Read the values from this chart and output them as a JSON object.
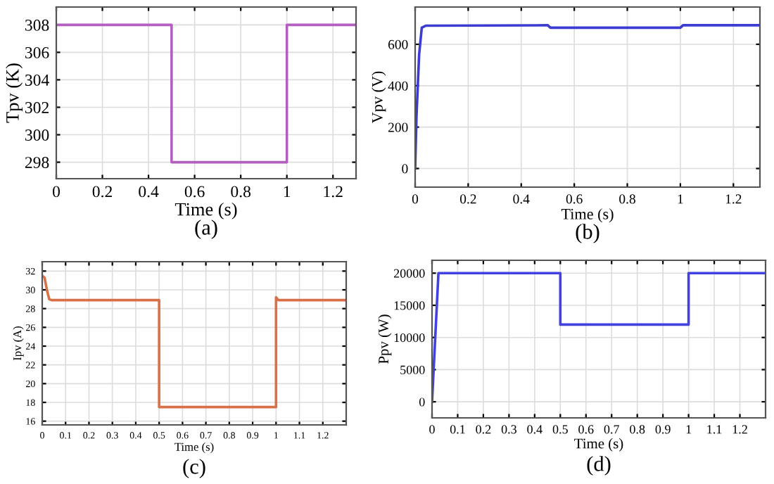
{
  "chart_data": [
    {
      "type": "line",
      "xlabel": "Time (s)",
      "ylabel": "Tpv (K)",
      "annotations": [
        "(a)"
      ],
      "grid": true,
      "xlim": [
        0,
        1.3
      ],
      "ylim": [
        296.8,
        309.3
      ],
      "xticks": [
        0,
        0.2,
        0.4,
        0.6,
        0.8,
        1,
        1.2
      ],
      "yticks": [
        298,
        300,
        302,
        304,
        306,
        308
      ],
      "series": [
        {
          "color": "#b25fc0",
          "x": [
            0,
            0.5,
            0.5,
            1,
            1,
            1.3
          ],
          "values": [
            308,
            308,
            298,
            298,
            308,
            308
          ]
        }
      ]
    },
    {
      "type": "line",
      "xlabel": "Time (s)",
      "ylabel": "Vpv (V)",
      "annotations": [
        "(b)"
      ],
      "grid": true,
      "xlim": [
        0,
        1.3
      ],
      "ylim": [
        -90,
        780
      ],
      "xticks": [
        0,
        0.2,
        0.4,
        0.6,
        0.8,
        1,
        1.2
      ],
      "yticks": [
        0,
        200,
        400,
        600
      ],
      "series": [
        {
          "color": "#3c3cd2",
          "x": [
            0,
            0.005,
            0.015,
            0.025,
            0.04,
            0.5,
            0.51,
            1,
            1.01,
            1.3
          ],
          "values": [
            0,
            250,
            550,
            680,
            690,
            692,
            680,
            680,
            692,
            692
          ]
        }
      ]
    },
    {
      "type": "line",
      "xlabel": "Time (s)",
      "ylabel": "Ipv (A)",
      "annotations": [
        "(c)"
      ],
      "grid": true,
      "xlim": [
        0,
        1.3
      ],
      "ylim": [
        15.6,
        33
      ],
      "xticks": [
        0,
        0.1,
        0.2,
        0.3,
        0.4,
        0.5,
        0.6,
        0.7,
        0.8,
        0.9,
        1,
        1.1,
        1.2
      ],
      "yticks": [
        16,
        18,
        20,
        22,
        24,
        26,
        28,
        30,
        32
      ],
      "series": [
        {
          "color": "#d8714a",
          "x": [
            0,
            0.01,
            0.02,
            0.03,
            0.04,
            0.5,
            0.5,
            1,
            1,
            1.01,
            1.3
          ],
          "values": [
            31.5,
            31.3,
            30,
            29,
            28.9,
            28.9,
            17.5,
            17.5,
            29.2,
            28.9,
            28.9
          ]
        }
      ]
    },
    {
      "type": "line",
      "xlabel": "Time (s)",
      "ylabel": "Ppv (W)",
      "annotations": [
        "(d)"
      ],
      "grid": true,
      "xlim": [
        0,
        1.3
      ],
      "ylim": [
        -2500,
        22000
      ],
      "xticks": [
        0,
        0.1,
        0.2,
        0.3,
        0.4,
        0.5,
        0.6,
        0.7,
        0.8,
        0.9,
        1,
        1.1,
        1.2
      ],
      "yticks": [
        0,
        5000,
        10000,
        15000,
        20000
      ],
      "series": [
        {
          "color": "#4242e0",
          "x": [
            0,
            0.025,
            0.5,
            0.5,
            1,
            1,
            1.3
          ],
          "values": [
            0,
            20000,
            20000,
            12000,
            12000,
            20000,
            20000
          ]
        }
      ]
    }
  ]
}
